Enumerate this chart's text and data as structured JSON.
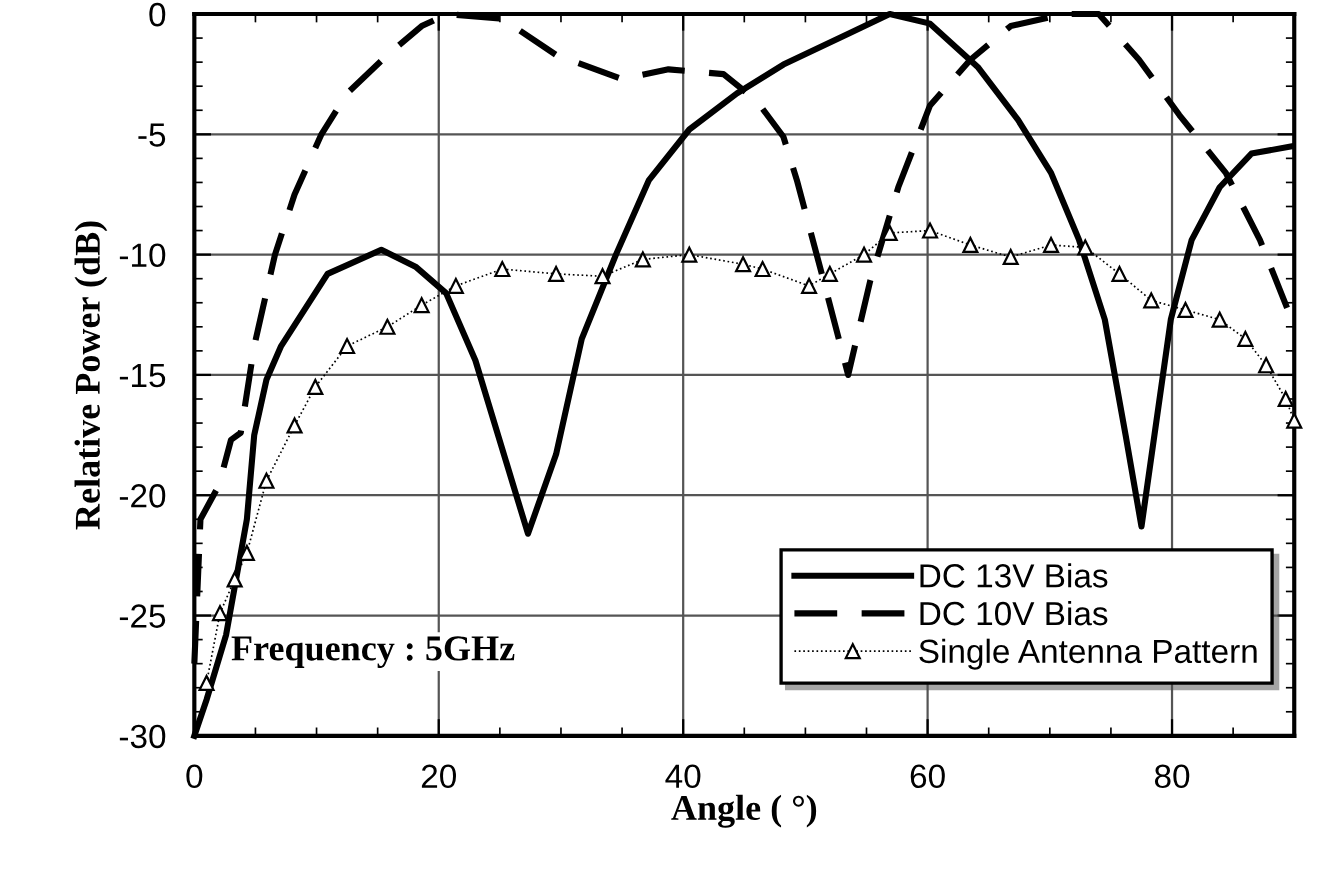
{
  "chart_data": {
    "type": "line",
    "xlabel": "Angle ( °)",
    "ylabel": "Relative Power (dB)",
    "xlim": [
      0,
      90
    ],
    "ylim": [
      -30,
      0
    ],
    "xticks": [
      0,
      20,
      40,
      60,
      80
    ],
    "yticks": [
      -30,
      -25,
      -20,
      -15,
      -10,
      -5,
      0
    ],
    "grid": true,
    "legend": "bottom right",
    "annotations": [
      {
        "text": "Frequency : 5GHz",
        "x": 3,
        "y": -26.5
      }
    ],
    "series": [
      {
        "name": "DC 13V Bias",
        "color": "#000000",
        "line_style": "solid",
        "marker": "none",
        "x": [
          0,
          1,
          2.6,
          4.3,
          4.9,
          5.9,
          7.1,
          10.9,
          15.3,
          18.1,
          20.6,
          23,
          27.3,
          29.6,
          31.7,
          34.5,
          37.2,
          40.5,
          44.4,
          48.2,
          53.6,
          56.9,
          60.2,
          64.1,
          67.4,
          70.1,
          72.4,
          74.5,
          76.2,
          77.5,
          79.9,
          81.6,
          83.9,
          86.5,
          89.8
        ],
        "values": [
          -30,
          -28.5,
          -25.8,
          -21,
          -17.5,
          -15.2,
          -13.8,
          -10.8,
          -9.8,
          -10.5,
          -11.6,
          -14.4,
          -21.6,
          -18.3,
          -13.5,
          -10,
          -6.9,
          -4.8,
          -3.3,
          -2.1,
          -0.8,
          0,
          -0.4,
          -2.2,
          -4.4,
          -6.6,
          -9.4,
          -12.7,
          -17.5,
          -21.3,
          -12.7,
          -9.4,
          -7.2,
          -5.8,
          -5.5
        ]
      },
      {
        "name": "DC 10V Bias",
        "color": "#000000",
        "line_style": "dashed",
        "marker": "none",
        "x": [
          0,
          0.5,
          2,
          3,
          3.8,
          4.9,
          6.6,
          8.2,
          10.4,
          12.5,
          15.8,
          18.6,
          20.7,
          25.2,
          29.6,
          35,
          38.8,
          43.3,
          46,
          48.2,
          49.3,
          51.5,
          53.5,
          55.3,
          57.6,
          60.2,
          63.5,
          66.8,
          71.2,
          74,
          77.3,
          80.6,
          84.4,
          87.2,
          89.8
        ],
        "values": [
          -27,
          -21,
          -19.6,
          -17.7,
          -17.4,
          -13.8,
          -10,
          -7.5,
          -5,
          -3.3,
          -1.7,
          -0.5,
          0,
          -0.2,
          -1.7,
          -2.7,
          -2.3,
          -2.5,
          -3.6,
          -5.1,
          -6.9,
          -11.1,
          -15,
          -11.1,
          -7.2,
          -3.8,
          -1.9,
          -0.5,
          0,
          0,
          -1.9,
          -4.2,
          -6.6,
          -9.4,
          -12.7
        ]
      },
      {
        "name": "Single Antenna Pattern",
        "color": "#000000",
        "line_style": "dotted",
        "marker": "triangle",
        "x": [
          1,
          2.1,
          3.3,
          4.3,
          5.9,
          8.2,
          9.9,
          12.5,
          15.8,
          18.6,
          21.4,
          25.2,
          29.6,
          33.4,
          36.7,
          40.5,
          44.9,
          46.5,
          50.3,
          52,
          54.8,
          56.9,
          60.2,
          63.5,
          66.8,
          70.1,
          72.9,
          75.7,
          78.3,
          81.1,
          83.9,
          86,
          87.7,
          89.3,
          90
        ],
        "values": [
          -27.8,
          -24.9,
          -23.5,
          -22.4,
          -19.4,
          -17.1,
          -15.5,
          -13.8,
          -13,
          -12.1,
          -11.3,
          -10.6,
          -10.8,
          -10.9,
          -10.2,
          -10,
          -10.4,
          -10.6,
          -11.3,
          -10.8,
          -10,
          -9.1,
          -9,
          -9.6,
          -10.1,
          -9.6,
          -9.7,
          -10.8,
          -11.9,
          -12.3,
          -12.7,
          -13.5,
          -14.6,
          -16,
          -16.9
        ]
      }
    ]
  }
}
